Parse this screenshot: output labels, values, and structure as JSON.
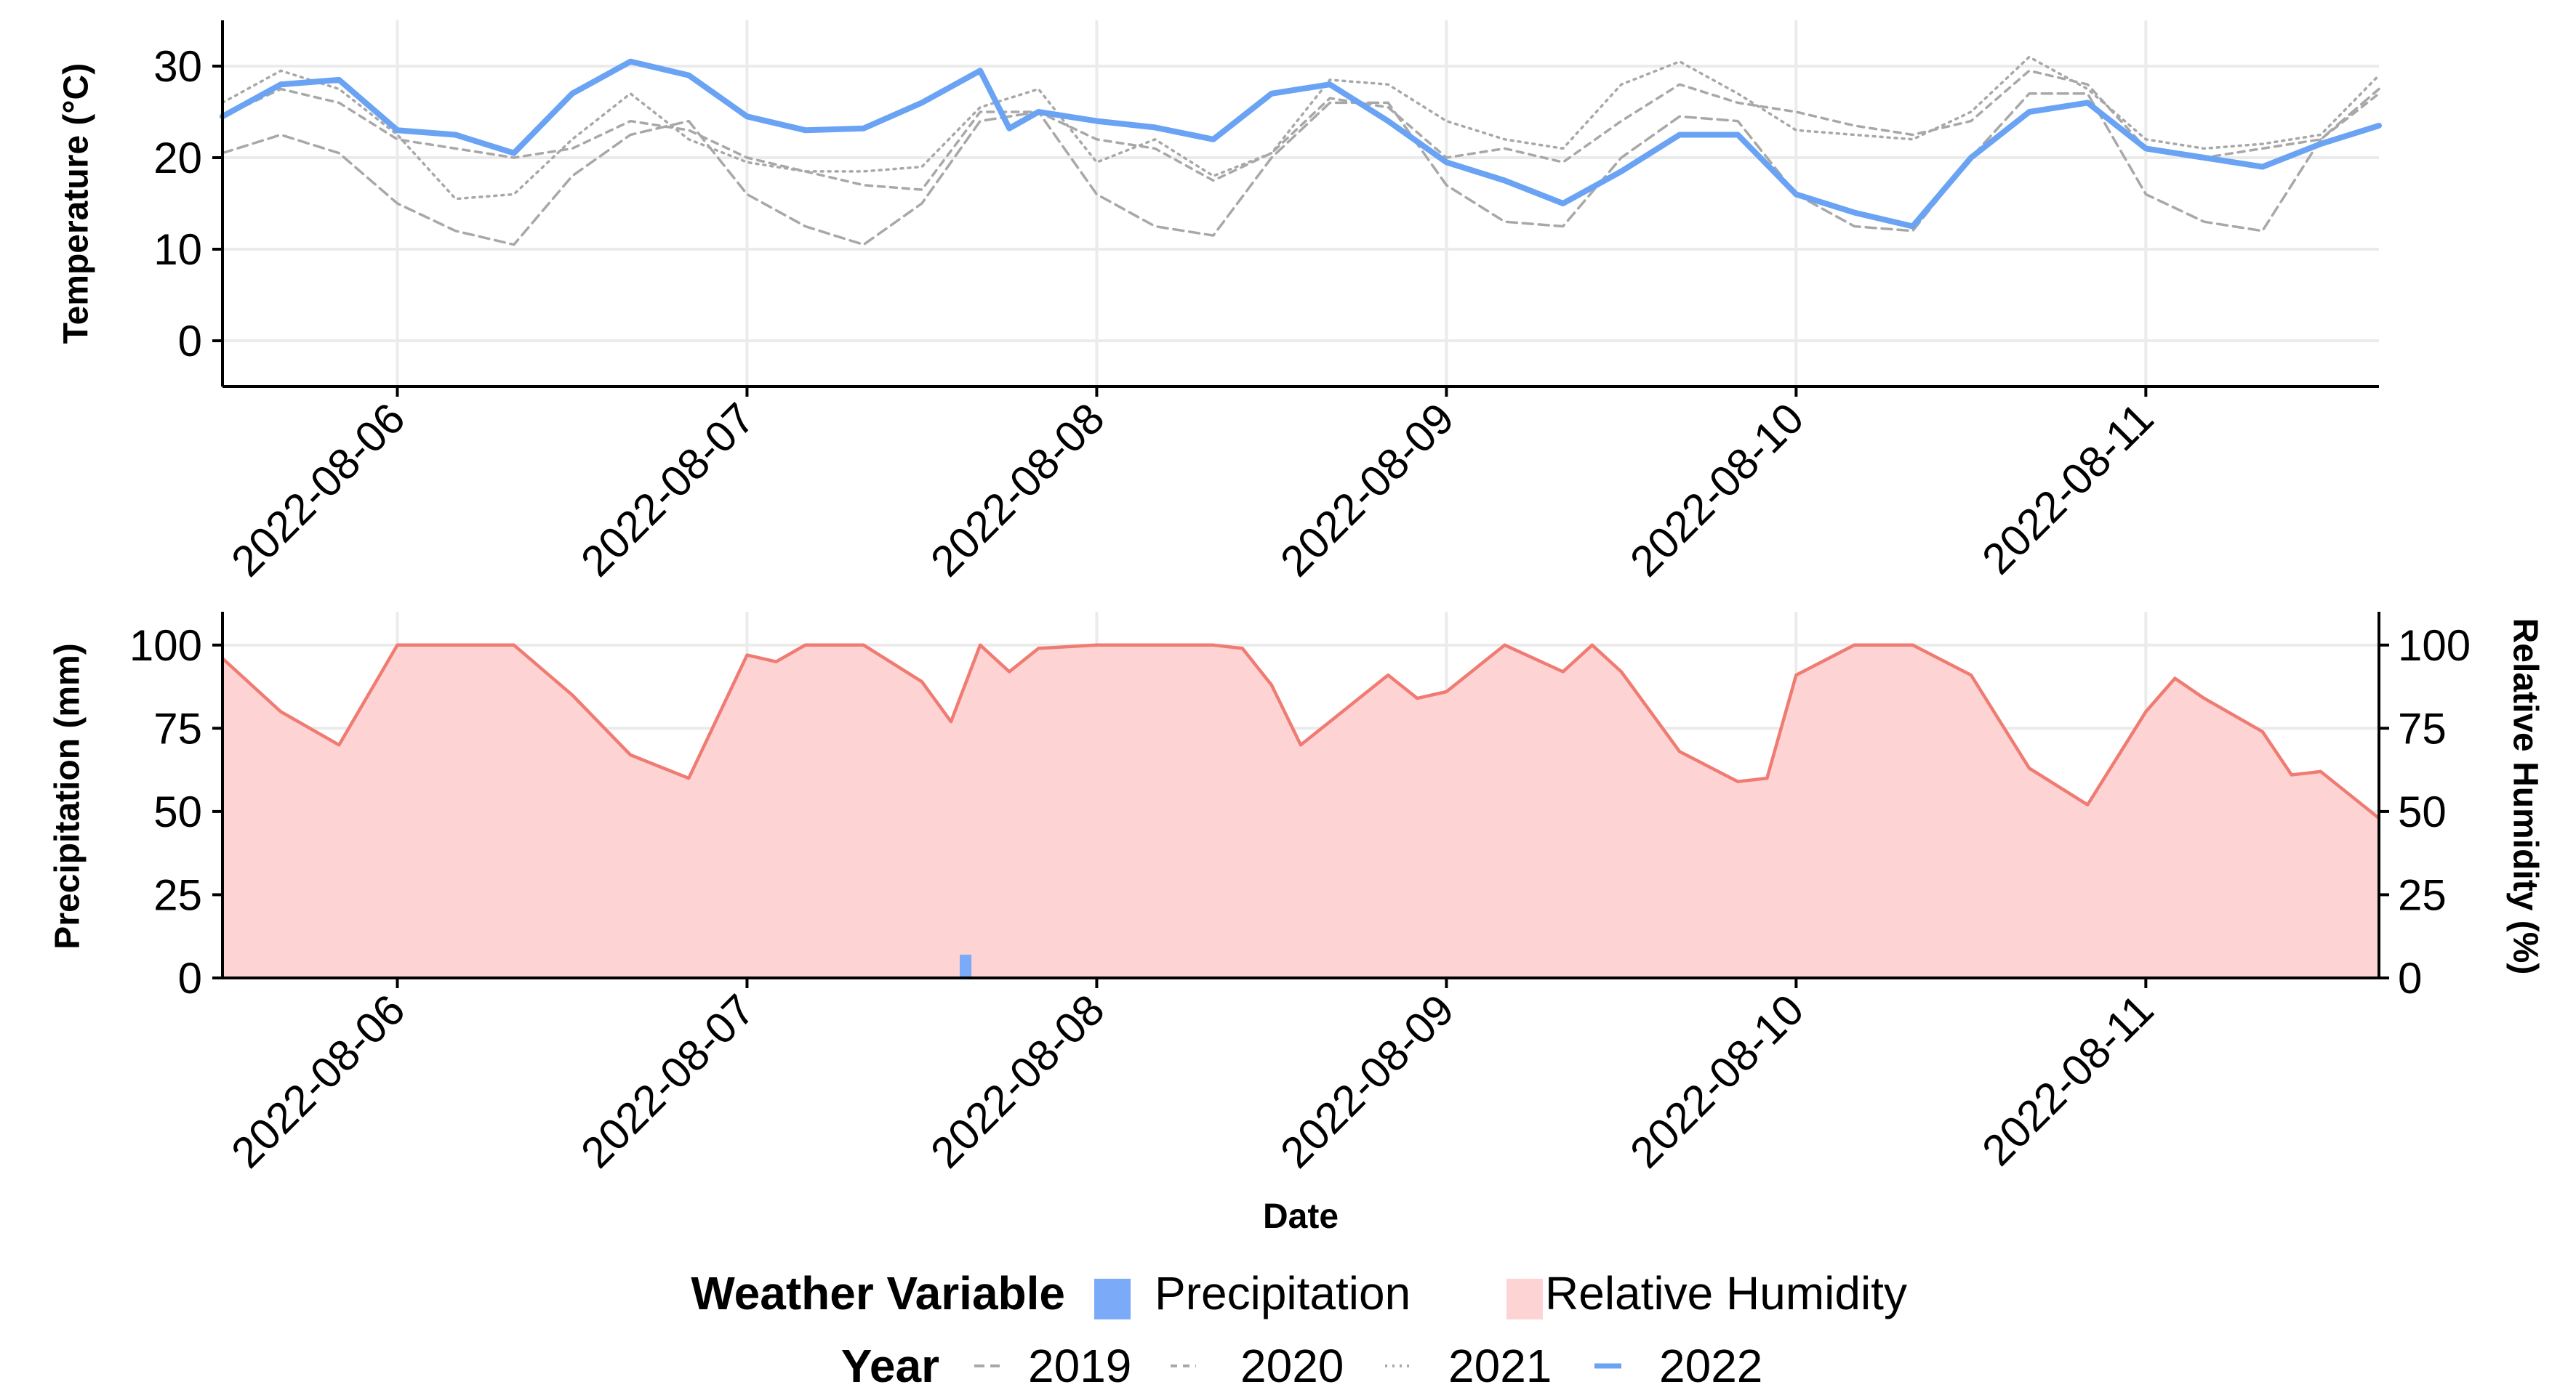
{
  "chart_data": [
    {
      "type": "line",
      "ylabel": "Temperature (°C)",
      "ylim": [
        -5,
        35
      ],
      "yticks": [
        0,
        10,
        20,
        30
      ],
      "xlim": [
        "2022-08-05 12:00",
        "2022-08-11 16:00"
      ],
      "xticks": [
        "2022-08-06",
        "2022-08-07",
        "2022-08-08",
        "2022-08-09",
        "2022-08-10",
        "2022-08-11"
      ],
      "grid": true,
      "series": [
        {
          "name": "2019",
          "points": [
            [
              "2022-08-05 12:00",
              20.5
            ],
            [
              "2022-08-05 16:00",
              22.5
            ],
            [
              "2022-08-05 20:00",
              20.5
            ],
            [
              "2022-08-06 00:00",
              15
            ],
            [
              "2022-08-06 04:00",
              12
            ],
            [
              "2022-08-06 08:00",
              10.5
            ],
            [
              "2022-08-06 12:00",
              18
            ],
            [
              "2022-08-06 16:00",
              22.5
            ],
            [
              "2022-08-06 20:00",
              24
            ],
            [
              "2022-08-07 00:00",
              16
            ],
            [
              "2022-08-07 04:00",
              12.5
            ],
            [
              "2022-08-07 08:00",
              10.5
            ],
            [
              "2022-08-07 12:00",
              15
            ],
            [
              "2022-08-07 16:00",
              24
            ],
            [
              "2022-08-07 20:00",
              25
            ],
            [
              "2022-08-08 00:00",
              16
            ],
            [
              "2022-08-08 04:00",
              12.5
            ],
            [
              "2022-08-08 08:00",
              11.5
            ],
            [
              "2022-08-08 12:00",
              20
            ],
            [
              "2022-08-08 16:00",
              26
            ],
            [
              "2022-08-08 20:00",
              26
            ],
            [
              "2022-08-09 00:00",
              17
            ],
            [
              "2022-08-09 04:00",
              13
            ],
            [
              "2022-08-09 08:00",
              12.5
            ],
            [
              "2022-08-09 12:00",
              20
            ],
            [
              "2022-08-09 16:00",
              24.5
            ],
            [
              "2022-08-09 20:00",
              24
            ],
            [
              "2022-08-10 00:00",
              16
            ],
            [
              "2022-08-10 04:00",
              12.5
            ],
            [
              "2022-08-10 08:00",
              12
            ],
            [
              "2022-08-10 12:00",
              20
            ],
            [
              "2022-08-10 16:00",
              27
            ],
            [
              "2022-08-10 20:00",
              27
            ],
            [
              "2022-08-11 00:00",
              16
            ],
            [
              "2022-08-11 04:00",
              13
            ],
            [
              "2022-08-11 08:00",
              12
            ],
            [
              "2022-08-11 12:00",
              22
            ],
            [
              "2022-08-11 16:00",
              27.5
            ]
          ]
        },
        {
          "name": "2020",
          "points": [
            [
              "2022-08-05 12:00",
              24.5
            ],
            [
              "2022-08-05 16:00",
              27.5
            ],
            [
              "2022-08-05 20:00",
              26
            ],
            [
              "2022-08-06 00:00",
              22
            ],
            [
              "2022-08-06 04:00",
              21
            ],
            [
              "2022-08-06 08:00",
              20
            ],
            [
              "2022-08-06 12:00",
              21
            ],
            [
              "2022-08-06 16:00",
              24
            ],
            [
              "2022-08-06 20:00",
              23
            ],
            [
              "2022-08-07 00:00",
              20
            ],
            [
              "2022-08-07 04:00",
              18.5
            ],
            [
              "2022-08-07 08:00",
              17
            ],
            [
              "2022-08-07 12:00",
              16.5
            ],
            [
              "2022-08-07 16:00",
              25
            ],
            [
              "2022-08-07 20:00",
              25
            ],
            [
              "2022-08-08 00:00",
              22
            ],
            [
              "2022-08-08 04:00",
              21
            ],
            [
              "2022-08-08 08:00",
              17.5
            ],
            [
              "2022-08-08 12:00",
              20.5
            ],
            [
              "2022-08-08 16:00",
              26.5
            ],
            [
              "2022-08-08 20:00",
              25.5
            ],
            [
              "2022-08-09 00:00",
              20
            ],
            [
              "2022-08-09 04:00",
              21
            ],
            [
              "2022-08-09 08:00",
              19.5
            ],
            [
              "2022-08-09 12:00",
              24
            ],
            [
              "2022-08-09 16:00",
              28
            ],
            [
              "2022-08-09 20:00",
              26
            ],
            [
              "2022-08-10 00:00",
              25
            ],
            [
              "2022-08-10 04:00",
              23.5
            ],
            [
              "2022-08-10 08:00",
              22.5
            ],
            [
              "2022-08-10 12:00",
              24
            ],
            [
              "2022-08-10 16:00",
              29.5
            ],
            [
              "2022-08-10 20:00",
              28
            ],
            [
              "2022-08-11 00:00",
              21
            ],
            [
              "2022-08-11 04:00",
              20
            ],
            [
              "2022-08-11 08:00",
              21
            ],
            [
              "2022-08-11 12:00",
              22
            ],
            [
              "2022-08-11 16:00",
              27
            ]
          ]
        },
        {
          "name": "2021",
          "points": [
            [
              "2022-08-05 12:00",
              26
            ],
            [
              "2022-08-05 16:00",
              29.5
            ],
            [
              "2022-08-05 20:00",
              27.5
            ],
            [
              "2022-08-06 00:00",
              22.5
            ],
            [
              "2022-08-06 04:00",
              15.5
            ],
            [
              "2022-08-06 08:00",
              16
            ],
            [
              "2022-08-06 12:00",
              22
            ],
            [
              "2022-08-06 16:00",
              27
            ],
            [
              "2022-08-06 20:00",
              22
            ],
            [
              "2022-08-07 00:00",
              19.5
            ],
            [
              "2022-08-07 04:00",
              18.5
            ],
            [
              "2022-08-07 08:00",
              18.5
            ],
            [
              "2022-08-07 12:00",
              19
            ],
            [
              "2022-08-07 16:00",
              25.5
            ],
            [
              "2022-08-07 20:00",
              27.5
            ],
            [
              "2022-08-08 00:00",
              19.5
            ],
            [
              "2022-08-08 04:00",
              22
            ],
            [
              "2022-08-08 08:00",
              18
            ],
            [
              "2022-08-08 12:00",
              20.5
            ],
            [
              "2022-08-08 16:00",
              28.5
            ],
            [
              "2022-08-08 20:00",
              28
            ],
            [
              "2022-08-09 00:00",
              24
            ],
            [
              "2022-08-09 04:00",
              22
            ],
            [
              "2022-08-09 08:00",
              21
            ],
            [
              "2022-08-09 12:00",
              28
            ],
            [
              "2022-08-09 16:00",
              30.5
            ],
            [
              "2022-08-09 20:00",
              27
            ],
            [
              "2022-08-10 00:00",
              23
            ],
            [
              "2022-08-10 04:00",
              22.5
            ],
            [
              "2022-08-10 08:00",
              22
            ],
            [
              "2022-08-10 12:00",
              25
            ],
            [
              "2022-08-10 16:00",
              31
            ],
            [
              "2022-08-10 20:00",
              27.5
            ],
            [
              "2022-08-11 00:00",
              22
            ],
            [
              "2022-08-11 04:00",
              21
            ],
            [
              "2022-08-11 08:00",
              21.5
            ],
            [
              "2022-08-11 12:00",
              22.5
            ],
            [
              "2022-08-11 16:00",
              29
            ]
          ]
        },
        {
          "name": "2022",
          "points": [
            [
              "2022-08-05 12:00",
              24.5
            ],
            [
              "2022-08-05 16:00",
              28
            ],
            [
              "2022-08-05 20:00",
              28.5
            ],
            [
              "2022-08-06 00:00",
              23
            ],
            [
              "2022-08-06 04:00",
              22.5
            ],
            [
              "2022-08-06 08:00",
              20.5
            ],
            [
              "2022-08-06 12:00",
              27
            ],
            [
              "2022-08-06 16:00",
              30.5
            ],
            [
              "2022-08-06 20:00",
              29
            ],
            [
              "2022-08-07 00:00",
              24.5
            ],
            [
              "2022-08-07 04:00",
              23
            ],
            [
              "2022-08-07 08:00",
              23.2
            ],
            [
              "2022-08-07 12:00",
              26
            ],
            [
              "2022-08-07 16:00",
              29.5
            ],
            [
              "2022-08-07 18:00",
              23.2
            ],
            [
              "2022-08-07 20:00",
              25
            ],
            [
              "2022-08-08 00:00",
              24
            ],
            [
              "2022-08-08 04:00",
              23.3
            ],
            [
              "2022-08-08 08:00",
              22
            ],
            [
              "2022-08-08 12:00",
              27
            ],
            [
              "2022-08-08 16:00",
              28
            ],
            [
              "2022-08-08 20:00",
              24
            ],
            [
              "2022-08-09 00:00",
              19.5
            ],
            [
              "2022-08-09 04:00",
              17.5
            ],
            [
              "2022-08-09 08:00",
              15
            ],
            [
              "2022-08-09 12:00",
              18.5
            ],
            [
              "2022-08-09 16:00",
              22.5
            ],
            [
              "2022-08-09 20:00",
              22.5
            ],
            [
              "2022-08-10 00:00",
              16
            ],
            [
              "2022-08-10 04:00",
              14
            ],
            [
              "2022-08-10 08:00",
              12.5
            ],
            [
              "2022-08-10 12:00",
              20
            ],
            [
              "2022-08-10 16:00",
              25
            ],
            [
              "2022-08-10 20:00",
              26
            ],
            [
              "2022-08-11 00:00",
              21
            ],
            [
              "2022-08-11 04:00",
              20
            ],
            [
              "2022-08-11 08:00",
              19
            ],
            [
              "2022-08-11 12:00",
              21.5
            ],
            [
              "2022-08-11 16:00",
              23.5
            ]
          ]
        }
      ]
    },
    {
      "type": "area",
      "xlabel": "Date",
      "ylabel": "Precipitation (mm)",
      "y2label": "Relative Humidity (%)",
      "ylim": [
        0,
        110
      ],
      "yticks": [
        0,
        25,
        50,
        75,
        100
      ],
      "y2ticks": [
        0,
        25,
        50,
        75,
        100
      ],
      "xlim": [
        "2022-08-05 12:00",
        "2022-08-11 16:00"
      ],
      "xticks": [
        "2022-08-06",
        "2022-08-07",
        "2022-08-08",
        "2022-08-09",
        "2022-08-10",
        "2022-08-11"
      ],
      "grid": true,
      "series": [
        {
          "name": "Relative Humidity",
          "points": [
            [
              "2022-08-05 12:00",
              96
            ],
            [
              "2022-08-05 16:00",
              80
            ],
            [
              "2022-08-05 20:00",
              70
            ],
            [
              "2022-08-06 00:00",
              100
            ],
            [
              "2022-08-06 04:00",
              100
            ],
            [
              "2022-08-06 08:00",
              100
            ],
            [
              "2022-08-06 12:00",
              85
            ],
            [
              "2022-08-06 16:00",
              67
            ],
            [
              "2022-08-06 20:00",
              60
            ],
            [
              "2022-08-07 00:00",
              97
            ],
            [
              "2022-08-07 02:00",
              95
            ],
            [
              "2022-08-07 04:00",
              100
            ],
            [
              "2022-08-07 08:00",
              100
            ],
            [
              "2022-08-07 12:00",
              89
            ],
            [
              "2022-08-07 14:00",
              77
            ],
            [
              "2022-08-07 16:00",
              100
            ],
            [
              "2022-08-07 18:00",
              92
            ],
            [
              "2022-08-07 20:00",
              99
            ],
            [
              "2022-08-08 00:00",
              100
            ],
            [
              "2022-08-08 04:00",
              100
            ],
            [
              "2022-08-08 08:00",
              100
            ],
            [
              "2022-08-08 10:00",
              99
            ],
            [
              "2022-08-08 12:00",
              88
            ],
            [
              "2022-08-08 14:00",
              70
            ],
            [
              "2022-08-08 16:00",
              77
            ],
            [
              "2022-08-08 20:00",
              91
            ],
            [
              "2022-08-08 22:00",
              84
            ],
            [
              "2022-08-09 00:00",
              86
            ],
            [
              "2022-08-09 04:00",
              100
            ],
            [
              "2022-08-09 08:00",
              92
            ],
            [
              "2022-08-09 10:00",
              100
            ],
            [
              "2022-08-09 12:00",
              92
            ],
            [
              "2022-08-09 16:00",
              68
            ],
            [
              "2022-08-09 20:00",
              59
            ],
            [
              "2022-08-09 22:00",
              60
            ],
            [
              "2022-08-10 00:00",
              91
            ],
            [
              "2022-08-10 04:00",
              100
            ],
            [
              "2022-08-10 08:00",
              100
            ],
            [
              "2022-08-10 12:00",
              91
            ],
            [
              "2022-08-10 16:00",
              63
            ],
            [
              "2022-08-10 20:00",
              52
            ],
            [
              "2022-08-11 00:00",
              80
            ],
            [
              "2022-08-11 02:00",
              90
            ],
            [
              "2022-08-11 04:00",
              84
            ],
            [
              "2022-08-11 08:00",
              74
            ],
            [
              "2022-08-11 10:00",
              61
            ],
            [
              "2022-08-11 12:00",
              62
            ],
            [
              "2022-08-11 16:00",
              48
            ]
          ]
        },
        {
          "name": "Precipitation",
          "type": "bar",
          "points": [
            [
              "2022-08-07 15:00",
              7
            ]
          ]
        }
      ]
    }
  ],
  "axes": {
    "top_ylabel": "Temperature (°C)",
    "bottom_ylabel": "Precipitation (mm)",
    "bottom_y2label": "Relative Humidity (%)",
    "xlabel": "Date",
    "top_yticks": [
      "0",
      "10",
      "20",
      "30"
    ],
    "bottom_yticks": [
      "0",
      "25",
      "50",
      "75",
      "100"
    ],
    "xticks": [
      "2022-08-06",
      "2022-08-07",
      "2022-08-08",
      "2022-08-09",
      "2022-08-10",
      "2022-08-11"
    ]
  },
  "legend": {
    "weather_title": "Weather Variable",
    "weather_items": [
      {
        "label": "Precipitation",
        "color": "#7aaaf8"
      },
      {
        "label": "Relative Humidity",
        "color": "#fdd3d3"
      }
    ],
    "year_title": "Year",
    "year_items": [
      {
        "label": "2019",
        "style": "longdash"
      },
      {
        "label": "2020",
        "style": "dashed"
      },
      {
        "label": "2021",
        "style": "dotted"
      },
      {
        "label": "2022",
        "style": "solid"
      }
    ]
  },
  "colors": {
    "temp_2022": "#6aa3f3",
    "temp_other": "#a8a8a8",
    "humidity_line": "#f07b72",
    "humidity_fill": "#fdd3d3",
    "precip": "#7aaaf8",
    "grid": "#ebebeb"
  }
}
